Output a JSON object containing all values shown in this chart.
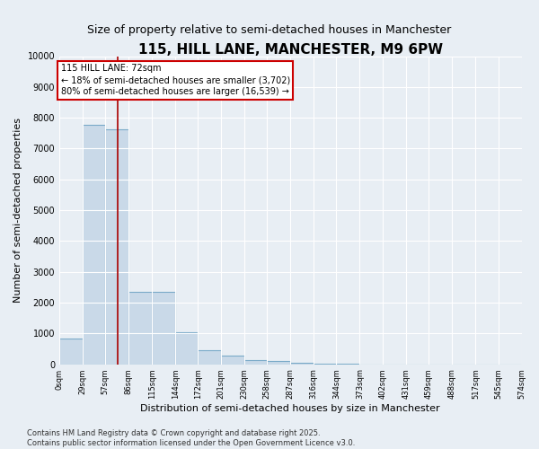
{
  "title": "115, HILL LANE, MANCHESTER, M9 6PW",
  "subtitle": "Size of property relative to semi-detached houses in Manchester",
  "xlabel": "Distribution of semi-detached houses by size in Manchester",
  "ylabel": "Number of semi-detached properties",
  "property_size": 72,
  "property_label": "115 HILL LANE: 72sqm",
  "pct_smaller": 18,
  "pct_larger": 80,
  "n_smaller": 3702,
  "n_larger": 16539,
  "annotation_line1": "115 HILL LANE: 72sqm",
  "annotation_line2": "← 18% of semi-detached houses are smaller (3,702)",
  "annotation_line3": "80% of semi-detached houses are larger (16,539) →",
  "bar_color": "#c9d9e8",
  "bar_edge_color": "#7aaac8",
  "vline_color": "#aa0000",
  "background_color": "#e8eef4",
  "grid_color": "#ffffff",
  "bin_labels": [
    "0sqm",
    "29sqm",
    "57sqm",
    "86sqm",
    "115sqm",
    "144sqm",
    "172sqm",
    "201sqm",
    "230sqm",
    "258sqm",
    "287sqm",
    "316sqm",
    "344sqm",
    "373sqm",
    "402sqm",
    "431sqm",
    "459sqm",
    "488sqm",
    "517sqm",
    "545sqm",
    "574sqm"
  ],
  "bin_edges": [
    0,
    29,
    57,
    86,
    115,
    144,
    172,
    201,
    230,
    258,
    287,
    316,
    344,
    373,
    402,
    431,
    459,
    488,
    517,
    545,
    574
  ],
  "bar_heights": [
    820,
    7780,
    7620,
    2350,
    2350,
    1050,
    460,
    270,
    130,
    110,
    60,
    20,
    5,
    2,
    1,
    0,
    0,
    0,
    0,
    0
  ],
  "ylim": [
    0,
    10000
  ],
  "yticks": [
    0,
    1000,
    2000,
    3000,
    4000,
    5000,
    6000,
    7000,
    8000,
    9000,
    10000
  ],
  "footnote": "Contains HM Land Registry data © Crown copyright and database right 2025.\nContains public sector information licensed under the Open Government Licence v3.0.",
  "title_fontsize": 11,
  "subtitle_fontsize": 9,
  "label_fontsize": 8,
  "tick_fontsize": 7,
  "footnote_fontsize": 6
}
